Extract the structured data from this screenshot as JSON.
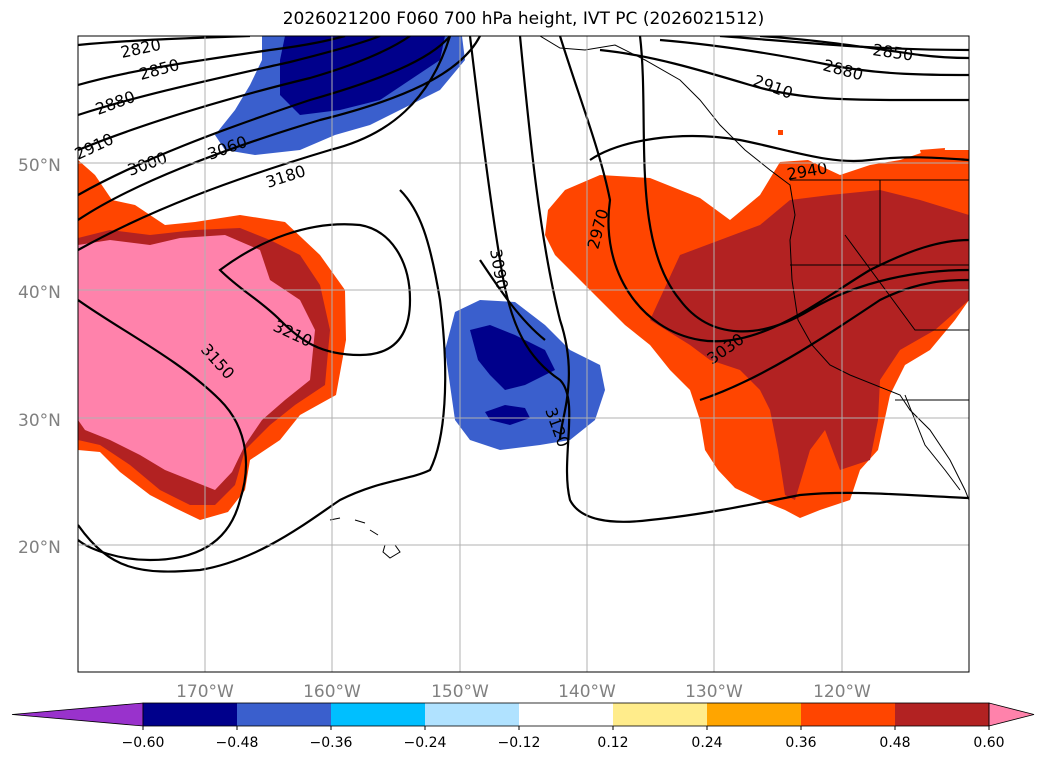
{
  "title": "2026021200 F060 700 hPa height, IVT PC (2026021512)",
  "map": {
    "lon_range": [
      -180,
      -110
    ],
    "lat_range": [
      10,
      60
    ],
    "lat_ticks": [
      {
        "label": "20°N",
        "lat": 20
      },
      {
        "label": "30°N",
        "lat": 30
      },
      {
        "label": "40°N",
        "lat": 40
      },
      {
        "label": "50°N",
        "lat": 50
      }
    ],
    "lon_ticks": [
      {
        "label": "170°W",
        "lon": -170
      },
      {
        "label": "160°W",
        "lon": -160
      },
      {
        "label": "150°W",
        "lon": -150
      },
      {
        "label": "140°W",
        "lon": -140
      },
      {
        "label": "130°W",
        "lon": -130
      },
      {
        "label": "120°W",
        "lon": -120
      }
    ],
    "grid": true
  },
  "contour_labels": [
    "2820",
    "2850",
    "2880",
    "2910",
    "2940",
    "2970",
    "3000",
    "3030",
    "3060",
    "3090",
    "3120",
    "3150",
    "3180",
    "3210"
  ],
  "colorbar": {
    "ticks": [
      "−0.60",
      "−0.48",
      "−0.36",
      "−0.24",
      "−0.12",
      "0.12",
      "0.24",
      "0.36",
      "0.48",
      "0.60"
    ],
    "colors": [
      "#9932cc",
      "#00008b",
      "#3a5fcd",
      "#00bfff",
      "#b0e2ff",
      "#ffffff",
      "#ffec8b",
      "#ffa500",
      "#ff4500",
      "#b22222",
      "#ff82ab"
    ],
    "extend": "both"
  }
}
